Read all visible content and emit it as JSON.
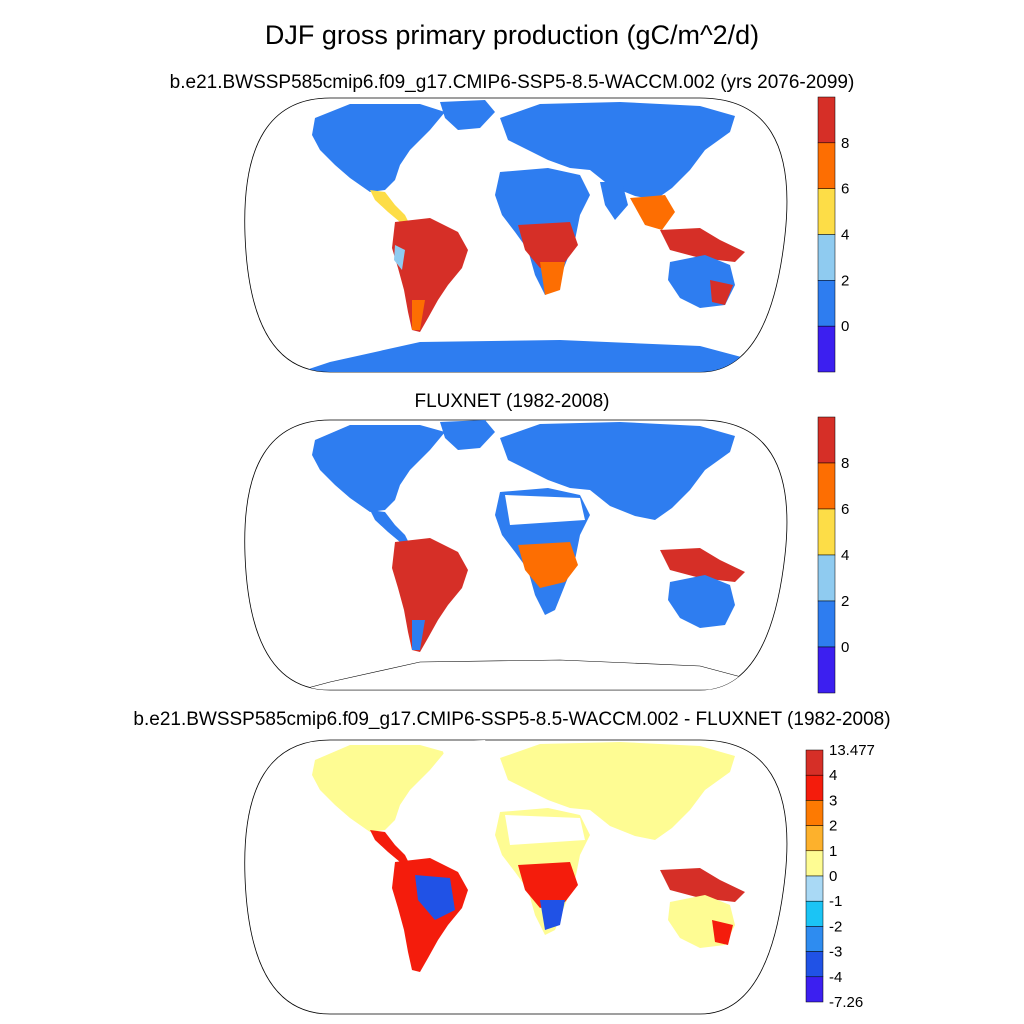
{
  "title": "DJF gross primary production (gC/m^2/d)",
  "panels": [
    {
      "subtitle": "b.e21.BWSSP585cmip6.f09_g17.CMIP6-SSP5-8.5-WACCM.002 (yrs 2076-2099)",
      "colorbar": {
        "labels": [
          "8",
          "6",
          "4",
          "2",
          "0"
        ],
        "colors": [
          "#d62f27",
          "#fd6e02",
          "#fddd47",
          "#8fcbf0",
          "#2e7df0",
          "#3c1ff0"
        ]
      }
    },
    {
      "subtitle": "FLUXNET (1982-2008)",
      "colorbar": {
        "labels": [
          "8",
          "6",
          "4",
          "2",
          "0"
        ],
        "colors": [
          "#d62f27",
          "#fd6e02",
          "#fddd47",
          "#8fcbf0",
          "#2e7df0",
          "#3c1ff0"
        ]
      }
    },
    {
      "subtitle": "b.e21.BWSSP585cmip6.f09_g17.CMIP6-SSP5-8.5-WACCM.002 - FLUXNET (1982-2008)",
      "colorbar": {
        "labels": [
          "13.477",
          "4",
          "3",
          "2",
          "1",
          "0",
          "-1",
          "-2",
          "-3",
          "-4",
          "-7.26"
        ],
        "colors": [
          "#d62f27",
          "#f41c0c",
          "#fd7a02",
          "#fdb12c",
          "#fefc93",
          "#a9d9f5",
          "#1bc4f5",
          "#2e8cf0",
          "#2052e6",
          "#3c1ff0"
        ]
      }
    }
  ]
}
